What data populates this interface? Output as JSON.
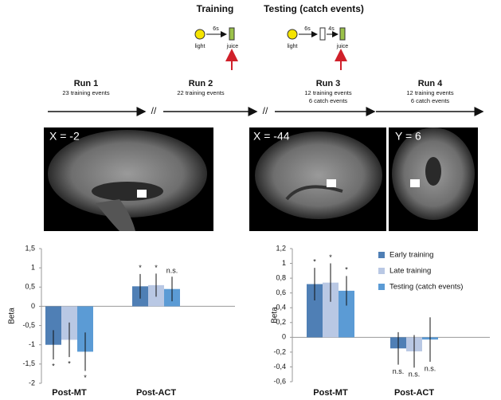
{
  "paradigm": {
    "training": {
      "title": "Training",
      "light": "light",
      "delay": "6s",
      "juice": "juice"
    },
    "testing": {
      "title": "Testing (catch events)",
      "light": "light",
      "delay1": "6s",
      "delay2": "4s",
      "juice": "juice"
    }
  },
  "runs": [
    {
      "name": "Run 1",
      "events": [
        "23 training events"
      ]
    },
    {
      "name": "Run 2",
      "events": [
        "22 training events"
      ]
    },
    {
      "name": "Run 3",
      "events": [
        "12 training events",
        "6 catch events"
      ]
    },
    {
      "name": "Run 4",
      "events": [
        "12 training events",
        "6 catch events"
      ]
    }
  ],
  "break_mark": "//",
  "brain_images": [
    {
      "label": "X = -2"
    },
    {
      "label": "X = -44"
    },
    {
      "label": "Y = 6"
    }
  ],
  "chart_data": [
    {
      "type": "bar",
      "y_label": "Beta",
      "categories": [
        "Post-MT",
        "Post-ACT"
      ],
      "ylim": [
        -2,
        1.5
      ],
      "yticks": [
        -2,
        {
          "value": -1.5,
          "label": "-1,5"
        },
        -1,
        {
          "value": -0.5,
          "label": "-0,5"
        },
        0,
        {
          "value": 0.5,
          "label": "0,5"
        },
        1,
        {
          "value": 1.5,
          "label": "1,5"
        }
      ],
      "series": [
        {
          "name": "Early training",
          "color": "#4f7fb5",
          "values": [
            -1.0,
            0.52
          ],
          "errors": [
            0.38,
            0.32
          ],
          "significance": [
            "*",
            "*"
          ]
        },
        {
          "name": "Late training",
          "color": "#b9c8e4",
          "values": [
            -0.87,
            0.55
          ],
          "errors": [
            0.45,
            0.3
          ],
          "significance": [
            "*",
            "*"
          ]
        },
        {
          "name": "Testing (catch events)",
          "color": "#5b9bd5",
          "values": [
            -1.18,
            0.45
          ],
          "errors": [
            0.5,
            0.32
          ],
          "significance": [
            "*",
            "n.s."
          ]
        }
      ]
    },
    {
      "type": "bar",
      "y_label": "Beta",
      "categories": [
        "Post-MT",
        "Post-ACT"
      ],
      "ylim": [
        -0.6,
        1.2
      ],
      "yticks": [
        {
          "value": -0.6,
          "label": "-0,6"
        },
        {
          "value": -0.4,
          "label": "-0,4"
        },
        {
          "value": -0.2,
          "label": "-0,2"
        },
        0,
        {
          "value": 0.2,
          "label": "0,2"
        },
        {
          "value": 0.4,
          "label": "0,4"
        },
        {
          "value": 0.6,
          "label": "0,6"
        },
        {
          "value": 0.8,
          "label": "0,8"
        },
        1,
        {
          "value": 1.2,
          "label": "1,2"
        }
      ],
      "legend": "upper right",
      "series": [
        {
          "name": "Early training",
          "color": "#4f7fb5",
          "values": [
            0.72,
            -0.15
          ],
          "errors": [
            0.22,
            0.22
          ],
          "significance": [
            "*",
            "n.s."
          ]
        },
        {
          "name": "Late training",
          "color": "#b9c8e4",
          "values": [
            0.74,
            -0.19
          ],
          "errors": [
            0.26,
            0.22
          ],
          "significance": [
            "*",
            "n.s."
          ]
        },
        {
          "name": "Testing (catch events)",
          "color": "#5b9bd5",
          "values": [
            0.63,
            -0.03
          ],
          "errors": [
            0.2,
            0.3
          ],
          "significance": [
            "*",
            "n.s."
          ]
        }
      ]
    }
  ]
}
